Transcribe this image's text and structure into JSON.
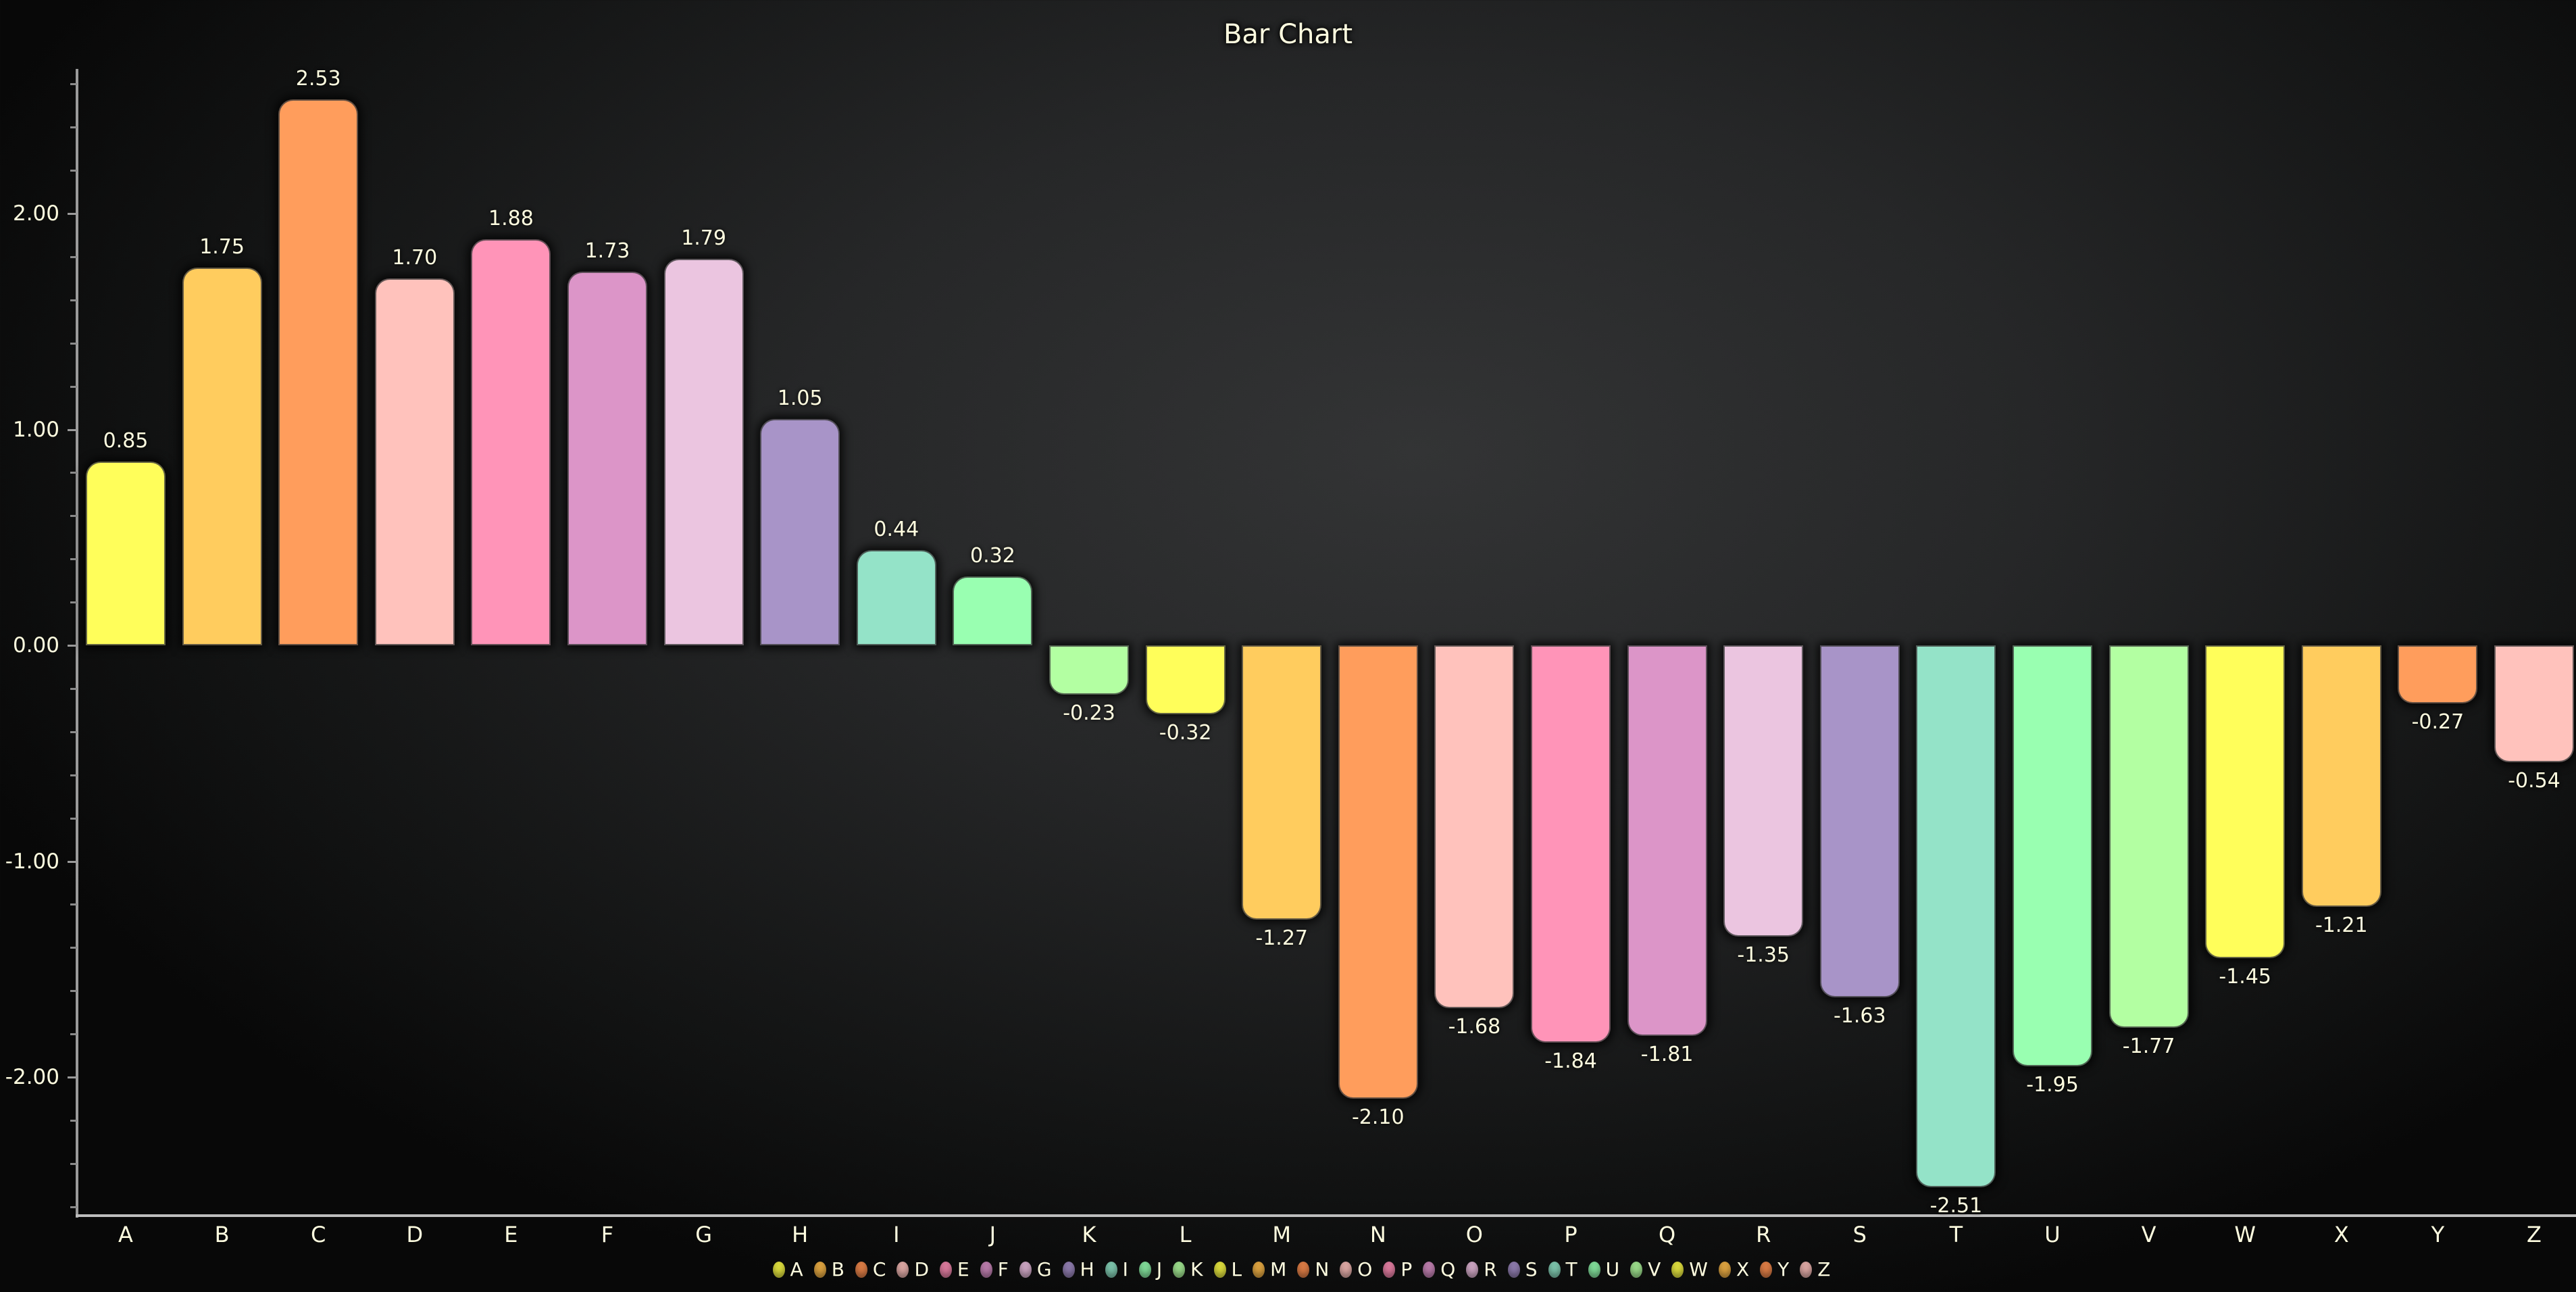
{
  "chart_data": {
    "type": "bar",
    "title": "Bar Chart",
    "xlabel": "",
    "ylabel": "",
    "categories": [
      "A",
      "B",
      "C",
      "D",
      "E",
      "F",
      "G",
      "H",
      "I",
      "J",
      "K",
      "L",
      "M",
      "N",
      "O",
      "P",
      "Q",
      "R",
      "S",
      "T",
      "U",
      "V",
      "W",
      "X",
      "Y",
      "Z"
    ],
    "values": [
      0.85,
      1.75,
      2.53,
      1.7,
      1.88,
      1.73,
      1.79,
      1.05,
      0.44,
      0.32,
      -0.23,
      -0.32,
      -1.27,
      -2.1,
      -1.68,
      -1.84,
      -1.81,
      -1.35,
      -1.63,
      -2.51,
      -1.95,
      -1.77,
      -1.45,
      -1.21,
      -0.27,
      -0.54
    ],
    "value_labels": [
      "0.85",
      "1.75",
      "2.53",
      "1.70",
      "1.88",
      "1.73",
      "1.79",
      "1.05",
      "0.44",
      "0.32",
      "-0.23",
      "-0.32",
      "-1.27",
      "-2.10",
      "-1.68",
      "-1.84",
      "-1.81",
      "-1.35",
      "-1.63",
      "-2.51",
      "-1.95",
      "-1.77",
      "-1.45",
      "-1.21",
      "-0.27",
      "-0.54"
    ],
    "colors": [
      "#FFFE5A",
      "#FFCC5E",
      "#FF9D5C",
      "#FFC2BC",
      "#FF94B8",
      "#DC95C8",
      "#EBC5E0",
      "#A894C8",
      "#94E3C8",
      "#99FFB1",
      "#B3FFA2",
      "#FFFE5A",
      "#FFCC5E",
      "#FF9D5C",
      "#FFC2BC",
      "#FF94B8",
      "#DC95C8",
      "#EBC5E0",
      "#A894C8",
      "#94E3C8",
      "#99FFB1",
      "#B3FFA2",
      "#FFFE5A",
      "#FFCC5E",
      "#FF9D5C",
      "#FFC2BC"
    ],
    "legend_colors": [
      "#D8D83C",
      "#D9A03F",
      "#D87A44",
      "#D8A4A0",
      "#D8789A",
      "#B77AA8",
      "#C8A2BE",
      "#8A78A8",
      "#7AC0A8",
      "#7ED896",
      "#98D888",
      "#D8D83C",
      "#D9A03F",
      "#D87A44",
      "#D8A4A0",
      "#D8789A",
      "#B77AA8",
      "#C8A2BE",
      "#8A78A8",
      "#7AC0A8",
      "#7ED896",
      "#98D888",
      "#D8D83C",
      "#D9A03F",
      "#D87A44",
      "#D8A4A0"
    ],
    "yticks": [
      {
        "value": 2.0,
        "label": "2.00"
      },
      {
        "value": 1.0,
        "label": "1.00"
      },
      {
        "value": 0.0,
        "label": "0.00"
      },
      {
        "value": -1.0,
        "label": "-1.00"
      },
      {
        "value": -2.0,
        "label": "-2.00"
      }
    ],
    "minor_tick_step": 0.2,
    "ylim": [
      -2.65,
      2.68
    ],
    "grid": false,
    "legend_position": "bottom",
    "legend": [
      "A",
      "B",
      "C",
      "D",
      "E",
      "F",
      "G",
      "H",
      "I",
      "J",
      "K",
      "L",
      "M",
      "N",
      "O",
      "P",
      "Q",
      "R",
      "S",
      "T",
      "U",
      "V",
      "W",
      "X",
      "Y",
      "Z"
    ]
  }
}
